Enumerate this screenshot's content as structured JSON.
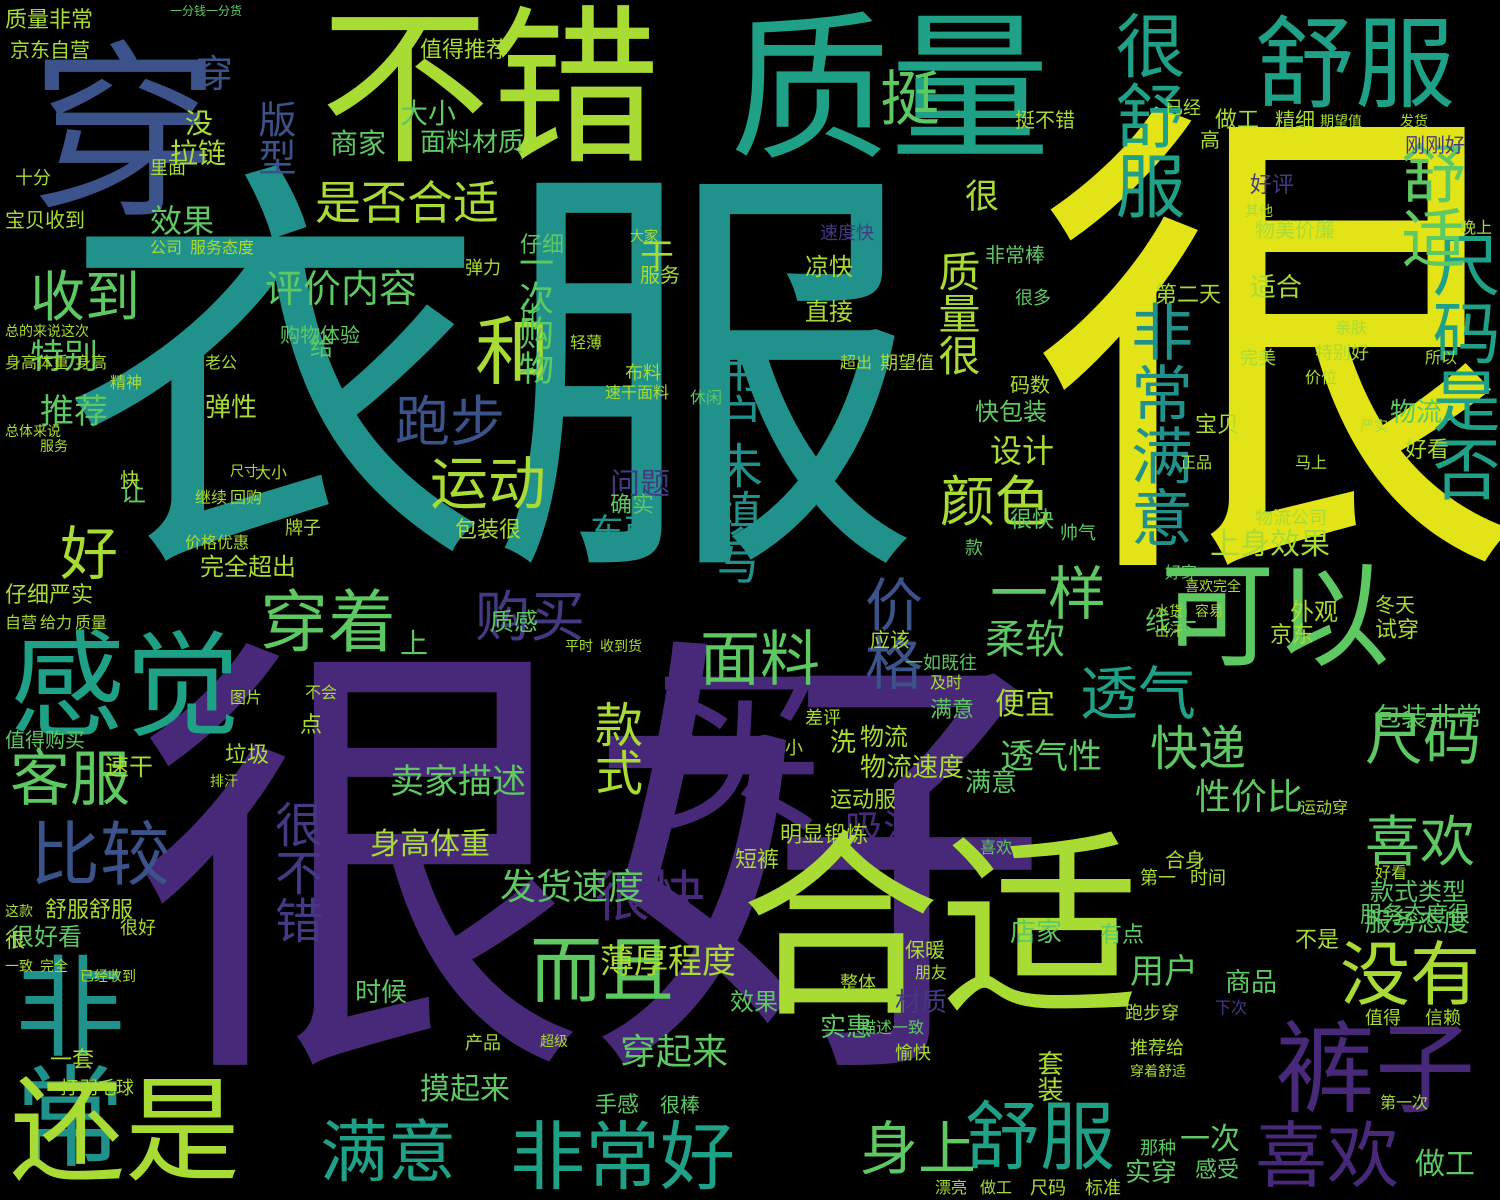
{
  "palette": {
    "yellow": "#e2e418",
    "lime": "#a8db34",
    "green": "#5ec962",
    "teal": "#1fa187",
    "cyan": "#21918c",
    "blue": "#3b528b",
    "purple": "#482878",
    "indigo": "#443983"
  },
  "words": [
    {
      "id": "w1",
      "text": "衣服"
    },
    {
      "id": "w2",
      "text": "很"
    },
    {
      "id": "w3",
      "text": "很好"
    },
    {
      "id": "w4",
      "text": "不错"
    },
    {
      "id": "w5",
      "text": "质量"
    },
    {
      "id": "w6",
      "text": "舒服"
    },
    {
      "id": "w7",
      "text": "穿"
    },
    {
      "id": "w8",
      "text": "可以"
    },
    {
      "id": "w9",
      "text": "感觉"
    },
    {
      "id": "w10",
      "text": "非常"
    },
    {
      "id": "w11",
      "text": "还是"
    },
    {
      "id": "w12",
      "text": "买"
    },
    {
      "id": "w13",
      "text": "合适"
    },
    {
      "id": "w14",
      "text": "裤子"
    },
    {
      "id": "w15",
      "text": "喜欢"
    },
    {
      "id": "w16",
      "text": "非常好"
    },
    {
      "id": "w17",
      "text": "舒服"
    },
    {
      "id": "w18",
      "text": "满意"
    },
    {
      "id": "w19",
      "text": "穿着"
    },
    {
      "id": "w20",
      "text": "面料"
    },
    {
      "id": "w21",
      "text": "客服"
    },
    {
      "id": "w22",
      "text": "比较"
    },
    {
      "id": "w23",
      "text": "而且"
    },
    {
      "id": "w24",
      "text": "没有"
    },
    {
      "id": "w25",
      "text": "很舒服"
    },
    {
      "id": "w26",
      "text": "尺码是否"
    },
    {
      "id": "w27",
      "text": "舒适"
    },
    {
      "id": "w28",
      "text": "非常满意"
    },
    {
      "id": "w29",
      "text": "颜色"
    },
    {
      "id": "w30",
      "text": "运动"
    },
    {
      "id": "w31",
      "text": "跑步"
    },
    {
      "id": "w32",
      "text": "收到"
    },
    {
      "id": "w33",
      "text": "购买"
    },
    {
      "id": "w34",
      "text": "价格"
    },
    {
      "id": "w35",
      "text": "透气"
    },
    {
      "id": "w36",
      "text": "一样"
    },
    {
      "id": "w37",
      "text": "尺码"
    },
    {
      "id": "w38",
      "text": "快递"
    },
    {
      "id": "w39",
      "text": "喜欢"
    },
    {
      "id": "w40",
      "text": "很快"
    },
    {
      "id": "w41",
      "text": "用户未填写"
    },
    {
      "id": "w42",
      "text": "款式"
    },
    {
      "id": "w43",
      "text": "很不错"
    },
    {
      "id": "w44",
      "text": "身上"
    },
    {
      "id": "w45",
      "text": "好"
    },
    {
      "id": "w46",
      "text": "是否合适"
    },
    {
      "id": "w47",
      "text": "评价内容"
    },
    {
      "id": "w48",
      "text": "特别"
    },
    {
      "id": "w49",
      "text": "推荐"
    },
    {
      "id": "w50",
      "text": "挺"
    },
    {
      "id": "w51",
      "text": "版型"
    },
    {
      "id": "w52",
      "text": "和"
    },
    {
      "id": "w53",
      "text": "一次购物"
    },
    {
      "id": "w54",
      "text": "设计"
    },
    {
      "id": "w55",
      "text": "柔软"
    },
    {
      "id": "w56",
      "text": "性价比"
    },
    {
      "id": "w57",
      "text": "服务态度"
    },
    {
      "id": "w58",
      "text": "薄厚程度"
    },
    {
      "id": "w59",
      "text": "身高体重"
    },
    {
      "id": "w60",
      "text": "发货速度"
    },
    {
      "id": "w61",
      "text": "透气性"
    },
    {
      "id": "w62",
      "text": "卖家描述"
    },
    {
      "id": "w63",
      "text": "吸汗"
    },
    {
      "id": "w64",
      "text": "效果"
    },
    {
      "id": "w65",
      "text": "拉链"
    },
    {
      "id": "w66",
      "text": "商家"
    },
    {
      "id": "w67",
      "text": "大小"
    },
    {
      "id": "w68",
      "text": "面料材质"
    },
    {
      "id": "w69",
      "text": "质量很"
    },
    {
      "id": "w70",
      "text": "弹性"
    },
    {
      "id": "w71",
      "text": "东西"
    },
    {
      "id": "w72",
      "text": "问题"
    },
    {
      "id": "w73",
      "text": "物流"
    },
    {
      "id": "w74",
      "text": "宝贝收到"
    },
    {
      "id": "w75",
      "text": "京东自营"
    },
    {
      "id": "w76",
      "text": "值得推荐"
    },
    {
      "id": "w77",
      "text": "做工"
    },
    {
      "id": "w78",
      "text": "上身效果"
    },
    {
      "id": "w79",
      "text": "包装"
    },
    {
      "id": "w80",
      "text": "非常"
    },
    {
      "id": "w81",
      "text": "满意"
    },
    {
      "id": "w82",
      "text": "一次"
    },
    {
      "id": "w83",
      "text": "实穿"
    },
    {
      "id": "w84",
      "text": "商品"
    },
    {
      "id": "w85",
      "text": "做工"
    },
    {
      "id": "w86",
      "text": "用户"
    },
    {
      "id": "w87",
      "text": "穿起来"
    },
    {
      "id": "w88",
      "text": "值得购买"
    },
    {
      "id": "w89",
      "text": "速干"
    },
    {
      "id": "w90",
      "text": "一套"
    },
    {
      "id": "w91",
      "text": "仔细严实"
    },
    {
      "id": "w92",
      "text": "完全超出"
    },
    {
      "id": "w93",
      "text": "确实"
    },
    {
      "id": "w94",
      "text": "质感"
    },
    {
      "id": "w95",
      "text": "物美价廉"
    },
    {
      "id": "w96",
      "text": "好评"
    },
    {
      "id": "w97",
      "text": "适合"
    },
    {
      "id": "w98",
      "text": "第二天"
    },
    {
      "id": "w99",
      "text": "非常棒"
    },
    {
      "id": "w100",
      "text": "好看"
    },
    {
      "id": "w101",
      "text": "款式类型"
    },
    {
      "id": "w102",
      "text": "服务态度很"
    },
    {
      "id": "w103",
      "text": "摸起来"
    },
    {
      "id": "w104",
      "text": "手感"
    },
    {
      "id": "w105",
      "text": "很棒"
    },
    {
      "id": "w106",
      "text": "质量非常"
    },
    {
      "id": "w107",
      "text": "一分钱一分货"
    },
    {
      "id": "w108",
      "text": "精细"
    },
    {
      "id": "w109",
      "text": "期望值"
    },
    {
      "id": "w110",
      "text": "发货"
    },
    {
      "id": "w111",
      "text": "刚刚好"
    },
    {
      "id": "w112",
      "text": "挺不错"
    },
    {
      "id": "w113",
      "text": "已经"
    },
    {
      "id": "w114",
      "text": "里面"
    },
    {
      "id": "w115",
      "text": "十分"
    },
    {
      "id": "w116",
      "text": "公司"
    },
    {
      "id": "w117",
      "text": "服务态度"
    },
    {
      "id": "w118",
      "text": "亲肤"
    },
    {
      "id": "w119",
      "text": "宝贝"
    },
    {
      "id": "w120",
      "text": "很多"
    },
    {
      "id": "w121",
      "text": "凉快"
    },
    {
      "id": "w122",
      "text": "直接"
    },
    {
      "id": "w123",
      "text": "速度快"
    },
    {
      "id": "w124",
      "text": "物流速度"
    },
    {
      "id": "w125",
      "text": "很快"
    },
    {
      "id": "w126",
      "text": "垃圾"
    },
    {
      "id": "w127",
      "text": "排汗"
    },
    {
      "id": "w128",
      "text": "运动服"
    },
    {
      "id": "w129",
      "text": "明显锻炼"
    },
    {
      "id": "w130",
      "text": "短裤"
    },
    {
      "id": "w131",
      "text": "店家"
    },
    {
      "id": "w132",
      "text": "材质"
    },
    {
      "id": "w133",
      "text": "效果"
    },
    {
      "id": "w134",
      "text": "实惠"
    },
    {
      "id": "w135",
      "text": "时候"
    },
    {
      "id": "w136",
      "text": "便宜"
    },
    {
      "id": "w137",
      "text": "外观"
    },
    {
      "id": "w138",
      "text": "试穿"
    },
    {
      "id": "w139",
      "text": "京东"
    },
    {
      "id": "w140",
      "text": "冬天"
    },
    {
      "id": "w141",
      "text": "穿"
    },
    {
      "id": "w142",
      "text": "套装"
    },
    {
      "id": "w143",
      "text": "舒服舒服"
    },
    {
      "id": "w144",
      "text": "很好看"
    },
    {
      "id": "w145",
      "text": "不是"
    },
    {
      "id": "w146",
      "text": "值得"
    },
    {
      "id": "w147",
      "text": "信赖"
    },
    {
      "id": "w148",
      "text": "有点"
    },
    {
      "id": "w149",
      "text": "推荐给"
    },
    {
      "id": "w150",
      "text": "合身"
    },
    {
      "id": "w151",
      "text": "跑步穿"
    },
    {
      "id": "w152",
      "text": "物流公司"
    },
    {
      "id": "w153",
      "text": "特别好"
    },
    {
      "id": "w154",
      "text": "精神"
    },
    {
      "id": "w155",
      "text": "码数"
    },
    {
      "id": "w156",
      "text": "快包装"
    },
    {
      "id": "w157",
      "text": "包装很"
    },
    {
      "id": "w158",
      "text": "让"
    },
    {
      "id": "w159",
      "text": "上"
    },
    {
      "id": "w160",
      "text": "没"
    },
    {
      "id": "w161",
      "text": "干"
    },
    {
      "id": "w162",
      "text": "服务"
    },
    {
      "id": "w163",
      "text": "大家"
    },
    {
      "id": "w164",
      "text": "弹力"
    },
    {
      "id": "w165",
      "text": "仔细"
    },
    {
      "id": "w166",
      "text": "轻薄"
    },
    {
      "id": "w167",
      "text": "喜欢"
    },
    {
      "id": "w168",
      "text": "比"
    },
    {
      "id": "w169",
      "text": "布料"
    },
    {
      "id": "w170",
      "text": "速干面料"
    },
    {
      "id": "w171",
      "text": "休闲"
    },
    {
      "id": "w172",
      "text": "很"
    },
    {
      "id": "w173",
      "text": "给"
    },
    {
      "id": "w174",
      "text": "期望值"
    },
    {
      "id": "w175",
      "text": "超出"
    },
    {
      "id": "w176",
      "text": "高"
    },
    {
      "id": "w177",
      "text": "总的来说这次"
    },
    {
      "id": "w178",
      "text": "老公"
    },
    {
      "id": "w179",
      "text": "购物体验"
    },
    {
      "id": "w180",
      "text": "物流"
    },
    {
      "id": "w181",
      "text": "第一"
    },
    {
      "id": "w182",
      "text": "时间"
    },
    {
      "id": "w183",
      "text": "帅气"
    },
    {
      "id": "w184",
      "text": "款"
    },
    {
      "id": "w185",
      "text": "应该"
    },
    {
      "id": "w186",
      "text": "满意"
    },
    {
      "id": "w187",
      "text": "一如既往"
    },
    {
      "id": "w188",
      "text": "及时"
    },
    {
      "id": "w189",
      "text": "差评"
    },
    {
      "id": "w190",
      "text": "小"
    },
    {
      "id": "w191",
      "text": "洗"
    },
    {
      "id": "w192",
      "text": "点"
    },
    {
      "id": "w193",
      "text": "正品"
    },
    {
      "id": "w194",
      "text": "价位"
    },
    {
      "id": "w195",
      "text": "完美"
    },
    {
      "id": "w196",
      "text": "所以"
    },
    {
      "id": "w197",
      "text": "马上"
    },
    {
      "id": "w198",
      "text": "严实"
    },
    {
      "id": "w199",
      "text": "好穿"
    },
    {
      "id": "w200",
      "text": "保暖"
    },
    {
      "id": "w201",
      "text": "朋友"
    },
    {
      "id": "w202",
      "text": "整体"
    },
    {
      "id": "w203",
      "text": "愉快"
    },
    {
      "id": "w204",
      "text": "描述一致"
    },
    {
      "id": "w205",
      "text": "下次"
    },
    {
      "id": "w206",
      "text": "产品"
    },
    {
      "id": "w207",
      "text": "超级"
    },
    {
      "id": "w208",
      "text": "快"
    },
    {
      "id": "w209",
      "text": "穿着舒适"
    },
    {
      "id": "w210",
      "text": "第一次"
    },
    {
      "id": "w211",
      "text": "那种"
    },
    {
      "id": "w212",
      "text": "感受"
    },
    {
      "id": "w213",
      "text": "标准"
    },
    {
      "id": "w214",
      "text": "尺码"
    },
    {
      "id": "w215",
      "text": "做工"
    },
    {
      "id": "w216",
      "text": "漂亮"
    },
    {
      "id": "w217",
      "text": "羽毛球"
    },
    {
      "id": "w218",
      "text": "打"
    },
    {
      "id": "w219",
      "text": "很好"
    },
    {
      "id": "w220",
      "text": "身高体重"
    },
    {
      "id": "w221",
      "text": "身高"
    },
    {
      "id": "w222",
      "text": "总体来说"
    },
    {
      "id": "w223",
      "text": "服务"
    },
    {
      "id": "w224",
      "text": "价格优惠"
    },
    {
      "id": "w225",
      "text": "继续"
    },
    {
      "id": "w226",
      "text": "回购"
    },
    {
      "id": "w227",
      "text": "牌子"
    },
    {
      "id": "w228",
      "text": "不会"
    },
    {
      "id": "w229",
      "text": "图片"
    },
    {
      "id": "w230",
      "text": "线头"
    },
    {
      "id": "w231",
      "text": "自营"
    },
    {
      "id": "w232",
      "text": "给力"
    },
    {
      "id": "w233",
      "text": "质量"
    },
    {
      "id": "w234",
      "text": "其他"
    },
    {
      "id": "w235",
      "text": "晚上"
    },
    {
      "id": "w236",
      "text": "平时"
    },
    {
      "id": "w237",
      "text": "收到货"
    },
    {
      "id": "w238",
      "text": "一致"
    },
    {
      "id": "w239",
      "text": "完全"
    },
    {
      "id": "w240",
      "text": "已经收到"
    },
    {
      "id": "w241",
      "text": "这款"
    },
    {
      "id": "w242",
      "text": "很"
    },
    {
      "id": "w243",
      "text": "好看"
    },
    {
      "id": "w244",
      "text": "运动穿"
    },
    {
      "id": "w245",
      "text": "喜欢完全"
    },
    {
      "id": "w246",
      "text": "水货"
    },
    {
      "id": "w247",
      "text": "容易"
    },
    {
      "id": "w248",
      "text": "出汗"
    },
    {
      "id": "w249",
      "text": "大小"
    },
    {
      "id": "w250",
      "text": "尺寸"
    }
  ]
}
